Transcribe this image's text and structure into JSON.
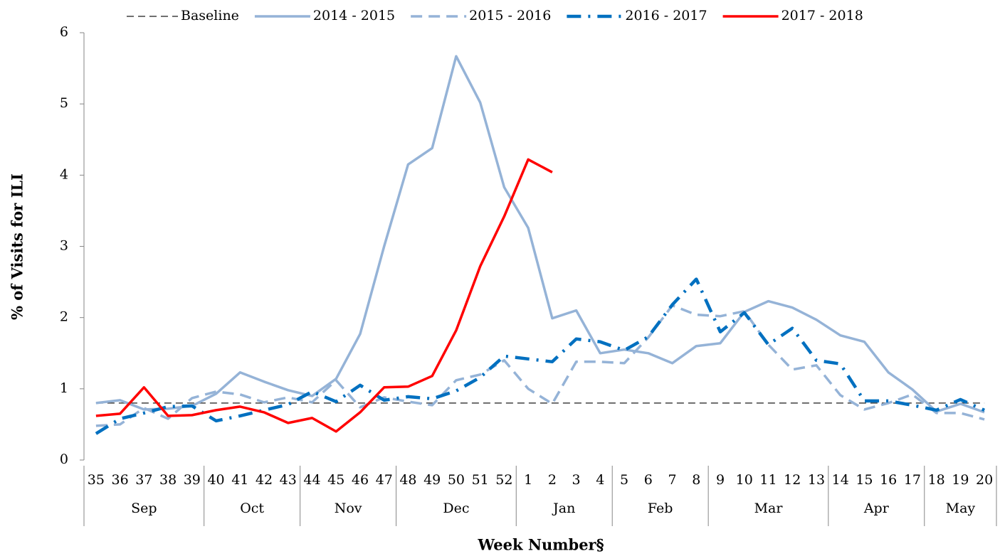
{
  "chart_data": {
    "type": "line",
    "y_axis_label": "% of Visits for ILI",
    "x_axis_label": "Week Number§",
    "categories": [
      "35",
      "36",
      "37",
      "38",
      "39",
      "40",
      "41",
      "42",
      "43",
      "44",
      "45",
      "46",
      "47",
      "48",
      "49",
      "50",
      "51",
      "52",
      "1",
      "2",
      "3",
      "4",
      "5",
      "6",
      "7",
      "8",
      "9",
      "10",
      "11",
      "12",
      "13",
      "14",
      "15",
      "16",
      "17",
      "18",
      "19",
      "20"
    ],
    "month_labels": [
      "Sep",
      null,
      null,
      null,
      null,
      "Oct",
      null,
      null,
      null,
      "Nov",
      null,
      null,
      null,
      "Dec",
      null,
      null,
      null,
      null,
      "Jan",
      null,
      null,
      null,
      "Feb",
      null,
      null,
      null,
      "Mar",
      null,
      null,
      null,
      null,
      "Apr",
      null,
      null,
      null,
      "May",
      null,
      null
    ],
    "ylim": [
      0,
      6
    ],
    "yticks": [
      0,
      1,
      2,
      3,
      4,
      5,
      6
    ],
    "grid": false,
    "legend": "top",
    "series": [
      {
        "name": "Baseline",
        "color": "#404040",
        "dash": "dashed-thin",
        "values": [
          0.8,
          0.8,
          0.8,
          0.8,
          0.8,
          0.8,
          0.8,
          0.8,
          0.8,
          0.8,
          0.8,
          0.8,
          0.8,
          0.8,
          0.8,
          0.8,
          0.8,
          0.8,
          0.8,
          0.8,
          0.8,
          0.8,
          0.8,
          0.8,
          0.8,
          0.8,
          0.8,
          0.8,
          0.8,
          0.8,
          0.8,
          0.8,
          0.8,
          0.8,
          0.8,
          0.8,
          0.8,
          0.8
        ]
      },
      {
        "name": "2014 - 2015",
        "color": "#95b3d7",
        "dash": "solid",
        "values": [
          0.8,
          0.84,
          0.71,
          0.72,
          0.76,
          0.93,
          1.23,
          1.1,
          0.98,
          0.9,
          1.14,
          1.77,
          3.0,
          4.15,
          4.38,
          5.67,
          5.02,
          3.83,
          3.26,
          1.99,
          2.1,
          1.5,
          1.55,
          1.5,
          1.36,
          1.6,
          1.64,
          2.08,
          2.23,
          2.14,
          1.97,
          1.75,
          1.66,
          1.23,
          0.99,
          0.68,
          0.79,
          0.67
        ]
      },
      {
        "name": "2015 - 2016",
        "color": "#95b3d7",
        "dash": "dashed",
        "values": [
          0.48,
          0.5,
          0.73,
          0.58,
          0.87,
          0.96,
          0.92,
          0.81,
          0.88,
          0.81,
          1.12,
          0.74,
          0.88,
          0.82,
          0.77,
          1.12,
          1.2,
          1.4,
          1.0,
          0.79,
          1.38,
          1.38,
          1.36,
          1.72,
          2.17,
          2.04,
          2.02,
          2.09,
          1.62,
          1.27,
          1.33,
          0.91,
          0.71,
          0.8,
          0.92,
          0.66,
          0.66,
          0.57
        ]
      },
      {
        "name": "2016 - 2017",
        "color": "#0070c0",
        "dash": "dashdot",
        "values": [
          0.37,
          0.58,
          0.66,
          0.75,
          0.76,
          0.55,
          0.62,
          0.7,
          0.78,
          0.96,
          0.82,
          1.05,
          0.84,
          0.89,
          0.86,
          0.97,
          1.16,
          1.46,
          1.42,
          1.38,
          1.7,
          1.66,
          1.54,
          1.73,
          2.18,
          2.54,
          1.8,
          2.07,
          1.62,
          1.85,
          1.4,
          1.35,
          0.83,
          0.83,
          0.77,
          0.7,
          0.85,
          0.7
        ]
      },
      {
        "name": "2017 - 2018",
        "color": "#ff0000",
        "dash": "solid",
        "values": [
          0.62,
          0.65,
          1.02,
          0.62,
          0.63,
          0.7,
          0.75,
          0.67,
          0.52,
          0.59,
          0.4,
          0.67,
          1.02,
          1.03,
          1.18,
          1.82,
          2.72,
          3.42,
          4.22,
          4.04,
          null,
          null,
          null,
          null,
          null,
          null,
          null,
          null,
          null,
          null,
          null,
          null,
          null,
          null,
          null,
          null,
          null,
          null
        ]
      }
    ]
  }
}
